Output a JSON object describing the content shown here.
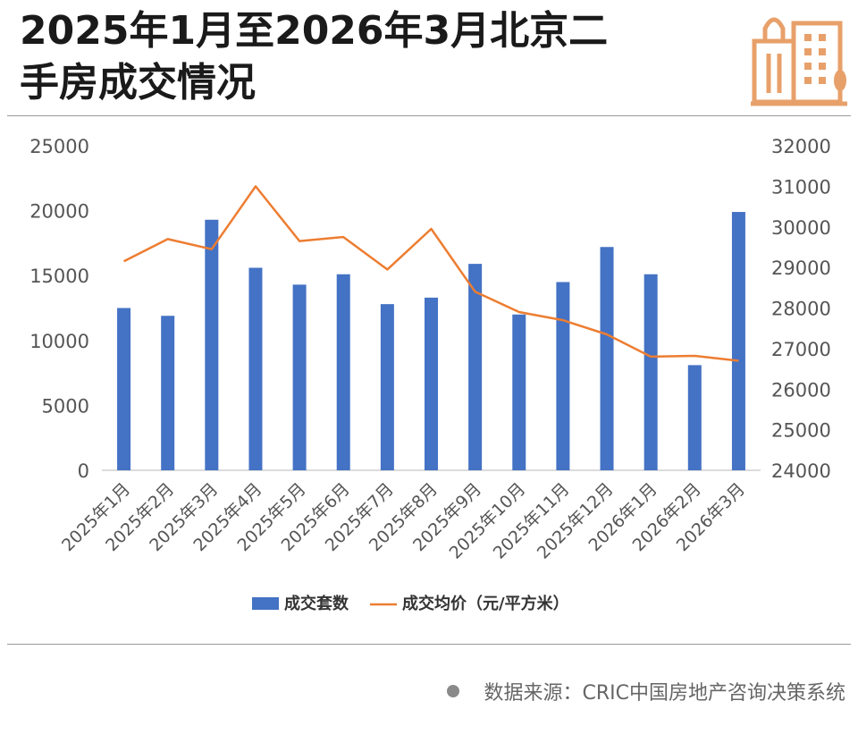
{
  "header": {
    "title_line1": "2025年1月至2026年3月北京二",
    "title_line2": "手房成交情况"
  },
  "footer": {
    "source": "数据来源：CRIC中国房地产咨询决策系统"
  },
  "colors": {
    "bar": "#4472c4",
    "line": "#ed7d31",
    "logo": "#e8a06a",
    "text": "#1a1a1a",
    "axis_text": "#555555"
  },
  "chart_data": {
    "type": "bar",
    "categories": [
      "2025年1月",
      "2025年2月",
      "2025年3月",
      "2025年4月",
      "2025年5月",
      "2025年6月",
      "2025年7月",
      "2025年8月",
      "2025年9月",
      "2025年10月",
      "2025年11月",
      "2025年12月",
      "2026年1月",
      "2026年2月",
      "2026年3月"
    ],
    "series": [
      {
        "name": "成交套数",
        "type": "bar",
        "axis": "left",
        "values": [
          12500,
          11900,
          19300,
          15600,
          14300,
          15100,
          12800,
          13300,
          15900,
          12000,
          14500,
          17200,
          15100,
          8100,
          19900
        ]
      },
      {
        "name": "成交均价（元/平方米）",
        "type": "line",
        "axis": "right",
        "values": [
          29150,
          29700,
          29450,
          31000,
          29650,
          29750,
          28950,
          29950,
          28400,
          27900,
          27700,
          27350,
          26800,
          26820,
          26700
        ]
      }
    ],
    "y_left": {
      "min": 0,
      "max": 25000,
      "ticks": [
        "0",
        "5000",
        "10000",
        "15000",
        "20000",
        "25000"
      ]
    },
    "y_right": {
      "min": 24000,
      "max": 32000,
      "ticks": [
        "24000",
        "25000",
        "26000",
        "27000",
        "28000",
        "29000",
        "30000",
        "31000",
        "32000"
      ]
    },
    "legend_position": "bottom",
    "grid": false
  }
}
